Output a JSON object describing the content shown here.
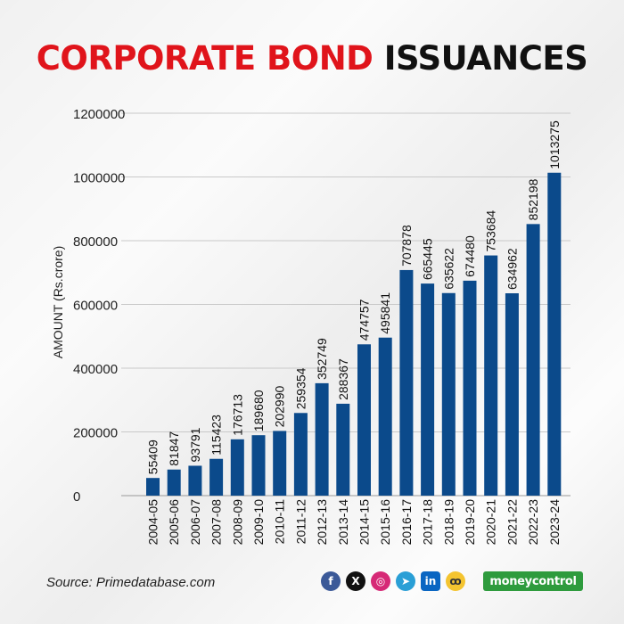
{
  "title": {
    "part1": "CORPORATE BOND",
    "part2": "ISSUANCES"
  },
  "source": "Source: Primedatabase.com",
  "brand": "moneycontrol",
  "social_icons": [
    "facebook-icon",
    "x-icon",
    "instagram-icon",
    "telegram-icon",
    "linkedin-icon",
    "koo-icon"
  ],
  "colors": {
    "bar": "#0b4a8b",
    "title_red": "#e0141b",
    "title_black": "#111111",
    "brand_green": "#2e9b3d"
  },
  "chart_data": {
    "type": "bar",
    "title": "CORPORATE BOND ISSUANCES",
    "ylabel": "AMOUNT (Rs.crore)",
    "xlabel": "",
    "ylim": [
      0,
      1200000
    ],
    "yticks": [
      0,
      200000,
      400000,
      600000,
      800000,
      1000000,
      1200000
    ],
    "ytick_labels": [
      "0",
      "200000",
      "400000",
      "600000",
      "800000",
      "1000000",
      "1200000"
    ],
    "grid": true,
    "categories": [
      "2004-05",
      "2005-06",
      "2006-07",
      "2007-08",
      "2008-09",
      "2009-10",
      "2010-11",
      "2011-12",
      "2012-13",
      "2013-14",
      "2014-15",
      "2015-16",
      "2016-17",
      "2017-18",
      "2018-19",
      "2019-20",
      "2020-21",
      "2021-22",
      "2022-23",
      "2023-24"
    ],
    "values": [
      55409,
      81847,
      93791,
      115423,
      176713,
      189680,
      202990,
      259354,
      352749,
      288367,
      474757,
      495841,
      707878,
      665445,
      635622,
      674480,
      753684,
      634962,
      852198,
      1013275
    ],
    "value_labels": [
      "55409",
      "81847",
      "93791",
      "115423",
      "176713",
      "189680",
      "202990",
      "259354",
      "352749",
      "288367",
      "474757",
      "495841",
      "707878",
      "665445",
      "635622",
      "674480",
      "753684",
      "634962",
      "852198",
      "1013275"
    ]
  }
}
